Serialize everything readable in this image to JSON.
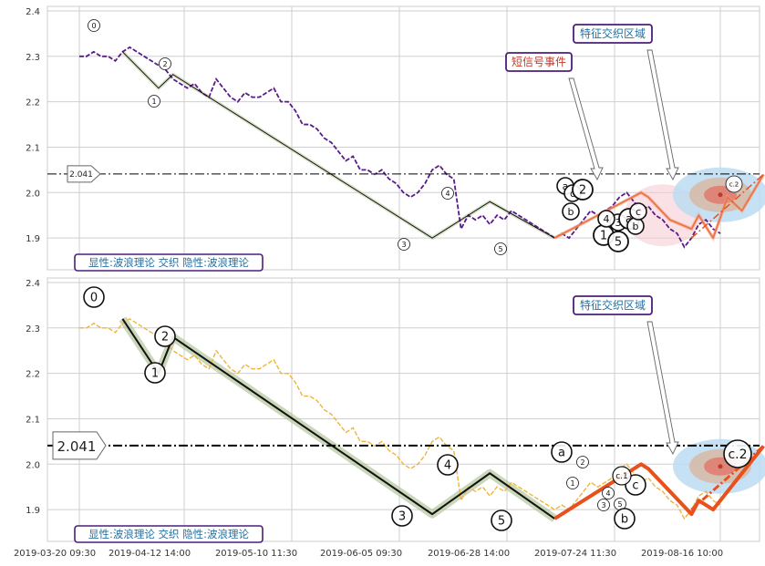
{
  "chart_data": [
    {
      "type": "line",
      "panel": "top",
      "ylim": [
        1.83,
        2.41
      ],
      "y_ticks": [
        1.9,
        2.0,
        2.1,
        2.2,
        2.3,
        2.4
      ],
      "y_tick_labels": [
        "1.9",
        "2.0",
        "2.1",
        "2.2",
        "2.3",
        "2.4"
      ],
      "grid": true,
      "price_color": "#5a1a8c",
      "hline": {
        "value": 2.041,
        "label": "2.041"
      },
      "legend_text": "显性:波浪理论 交织 隐性:波浪理论",
      "series": [
        {
          "role": "price",
          "values": [
            2.3,
            2.3,
            2.31,
            2.3,
            2.3,
            2.29,
            2.31,
            2.32,
            2.31,
            2.3,
            2.29,
            2.28,
            2.27,
            2.25,
            2.24,
            2.23,
            2.24,
            2.22,
            2.21,
            2.25,
            2.23,
            2.21,
            2.2,
            2.22,
            2.21,
            2.21,
            2.22,
            2.23,
            2.2,
            2.2,
            2.18,
            2.15,
            2.15,
            2.14,
            2.12,
            2.11,
            2.09,
            2.07,
            2.08,
            2.05,
            2.05,
            2.04,
            2.05,
            2.03,
            2.02,
            2.0,
            1.99,
            2.0,
            2.02,
            2.05,
            2.06,
            2.04,
            2.03,
            1.92,
            1.95,
            1.94,
            1.95,
            1.93,
            1.95,
            1.94,
            1.96,
            1.95,
            1.94,
            1.93,
            1.92,
            1.91,
            1.9,
            1.91,
            1.9,
            1.92,
            1.94,
            1.96,
            1.95,
            1.96,
            1.97,
            1.99,
            2.0,
            1.98,
            1.96,
            1.97,
            1.95,
            1.94,
            1.92,
            1.91,
            1.88,
            1.9,
            1.93,
            1.94,
            1.92,
            1.91
          ]
        },
        {
          "role": "wave_primary",
          "points": [
            [
              6,
              2.31
            ],
            [
              11,
              2.23
            ],
            [
              13,
              2.26
            ],
            [
              49,
              1.9
            ],
            [
              57,
              1.98
            ],
            [
              66,
              1.9
            ],
            [
              78,
              2.0
            ],
            [
              79,
              1.99
            ],
            [
              82,
              1.94
            ],
            [
              85,
              1.92
            ],
            [
              86,
              1.95
            ],
            [
              88,
              1.9
            ],
            [
              90,
              1.99
            ],
            [
              92,
              1.96
            ],
            [
              95,
              2.04
            ]
          ]
        }
      ],
      "wave_labels": [
        "0",
        "1",
        "2",
        "3",
        "4",
        "5",
        "a",
        "b",
        "c",
        "1",
        "2",
        "3",
        "4",
        "5",
        "a",
        "b",
        "c",
        "c.2"
      ],
      "annotations": [
        {
          "text": "短信号事件",
          "color": "#c0392b"
        },
        {
          "text": "特征交织区域",
          "color": "#2471a3"
        }
      ]
    },
    {
      "type": "line",
      "panel": "bottom",
      "ylim": [
        1.83,
        2.41
      ],
      "y_ticks": [
        1.9,
        2.0,
        2.1,
        2.2,
        2.3,
        2.4
      ],
      "y_tick_labels": [
        "1.9",
        "2.0",
        "2.1",
        "2.2",
        "2.3",
        "2.4"
      ],
      "grid": true,
      "price_color": "#f0b43a",
      "hline": {
        "value": 2.041,
        "label": "2.041"
      },
      "legend_text": "显性:波浪理论 交织 隐性:波浪理论",
      "x_tick_labels": [
        "2019-03-20 09:30",
        "2019-04-12 14:00",
        "2019-05-10 11:30",
        "2019-06-05 09:30",
        "2019-06-28 14:00",
        "2019-07-24 11:30",
        "2019-08-16 10:00"
      ],
      "series": [
        {
          "role": "price",
          "values": [
            2.3,
            2.3,
            2.31,
            2.3,
            2.3,
            2.29,
            2.31,
            2.32,
            2.31,
            2.3,
            2.29,
            2.28,
            2.27,
            2.25,
            2.24,
            2.23,
            2.24,
            2.22,
            2.21,
            2.25,
            2.23,
            2.21,
            2.2,
            2.22,
            2.21,
            2.21,
            2.22,
            2.23,
            2.2,
            2.2,
            2.18,
            2.15,
            2.15,
            2.14,
            2.12,
            2.11,
            2.09,
            2.07,
            2.08,
            2.05,
            2.05,
            2.04,
            2.05,
            2.03,
            2.02,
            2.0,
            1.99,
            2.0,
            2.02,
            2.05,
            2.06,
            2.04,
            2.03,
            1.92,
            1.95,
            1.94,
            1.95,
            1.93,
            1.95,
            1.94,
            1.96,
            1.95,
            1.94,
            1.93,
            1.92,
            1.91,
            1.9,
            1.91,
            1.9,
            1.92,
            1.94,
            1.96,
            1.95,
            1.96,
            1.97,
            1.99,
            2.0,
            1.98,
            1.96,
            1.97,
            1.95,
            1.94,
            1.92,
            1.91,
            1.88,
            1.9,
            1.93,
            1.94,
            1.92,
            1.91
          ]
        },
        {
          "role": "wave_primary",
          "points": [
            [
              6,
              2.32
            ],
            [
              11,
              2.2
            ],
            [
              13,
              2.28
            ],
            [
              49,
              1.89
            ],
            [
              57,
              1.98
            ],
            [
              66,
              1.88
            ],
            [
              78,
              2.0
            ],
            [
              79,
              1.99
            ],
            [
              82,
              1.94
            ],
            [
              85,
              1.89
            ],
            [
              86,
              1.92
            ],
            [
              88,
              1.9
            ],
            [
              95,
              2.04
            ]
          ]
        }
      ],
      "wave_labels": [
        "0",
        "1",
        "2",
        "3",
        "4",
        "5",
        "a",
        "1",
        "2",
        "3",
        "4",
        "5",
        "b",
        "c",
        "c.1",
        "c.2"
      ],
      "annotations": [
        {
          "text": "特征交织区域",
          "color": "#2471a3"
        }
      ]
    }
  ]
}
